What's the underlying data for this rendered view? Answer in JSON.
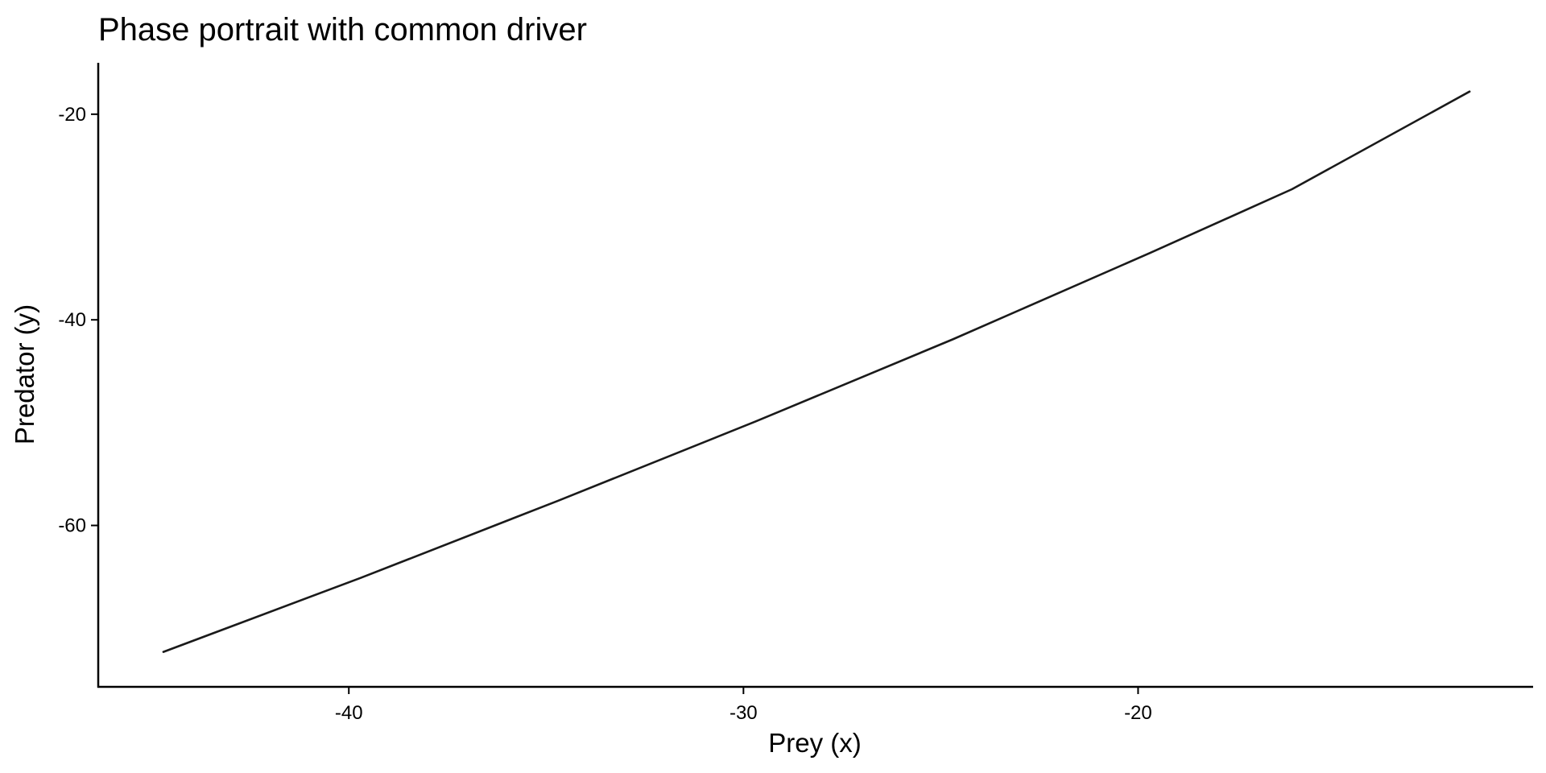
{
  "chart_data": {
    "type": "line",
    "title": "Phase portrait with common driver",
    "xlabel": "Prey (x)",
    "ylabel": "Predator (y)",
    "xlim": [
      -46.35,
      -9.99
    ],
    "ylim": [
      -75.7,
      -15.0
    ],
    "x_ticks": [
      -40,
      -30,
      -20
    ],
    "y_ticks": [
      -20,
      -40,
      -60
    ],
    "grid": false,
    "legend": "none",
    "line_color": "#1a1a1a",
    "series": [
      {
        "x": [
          -44.7,
          -39.7,
          -34.7,
          -29.7,
          -24.7,
          -19.7,
          -16.1,
          -11.6
        ],
        "y": [
          -72.3,
          -65.1,
          -57.6,
          -49.9,
          -41.9,
          -33.5,
          -27.3,
          -17.8
        ]
      }
    ]
  }
}
